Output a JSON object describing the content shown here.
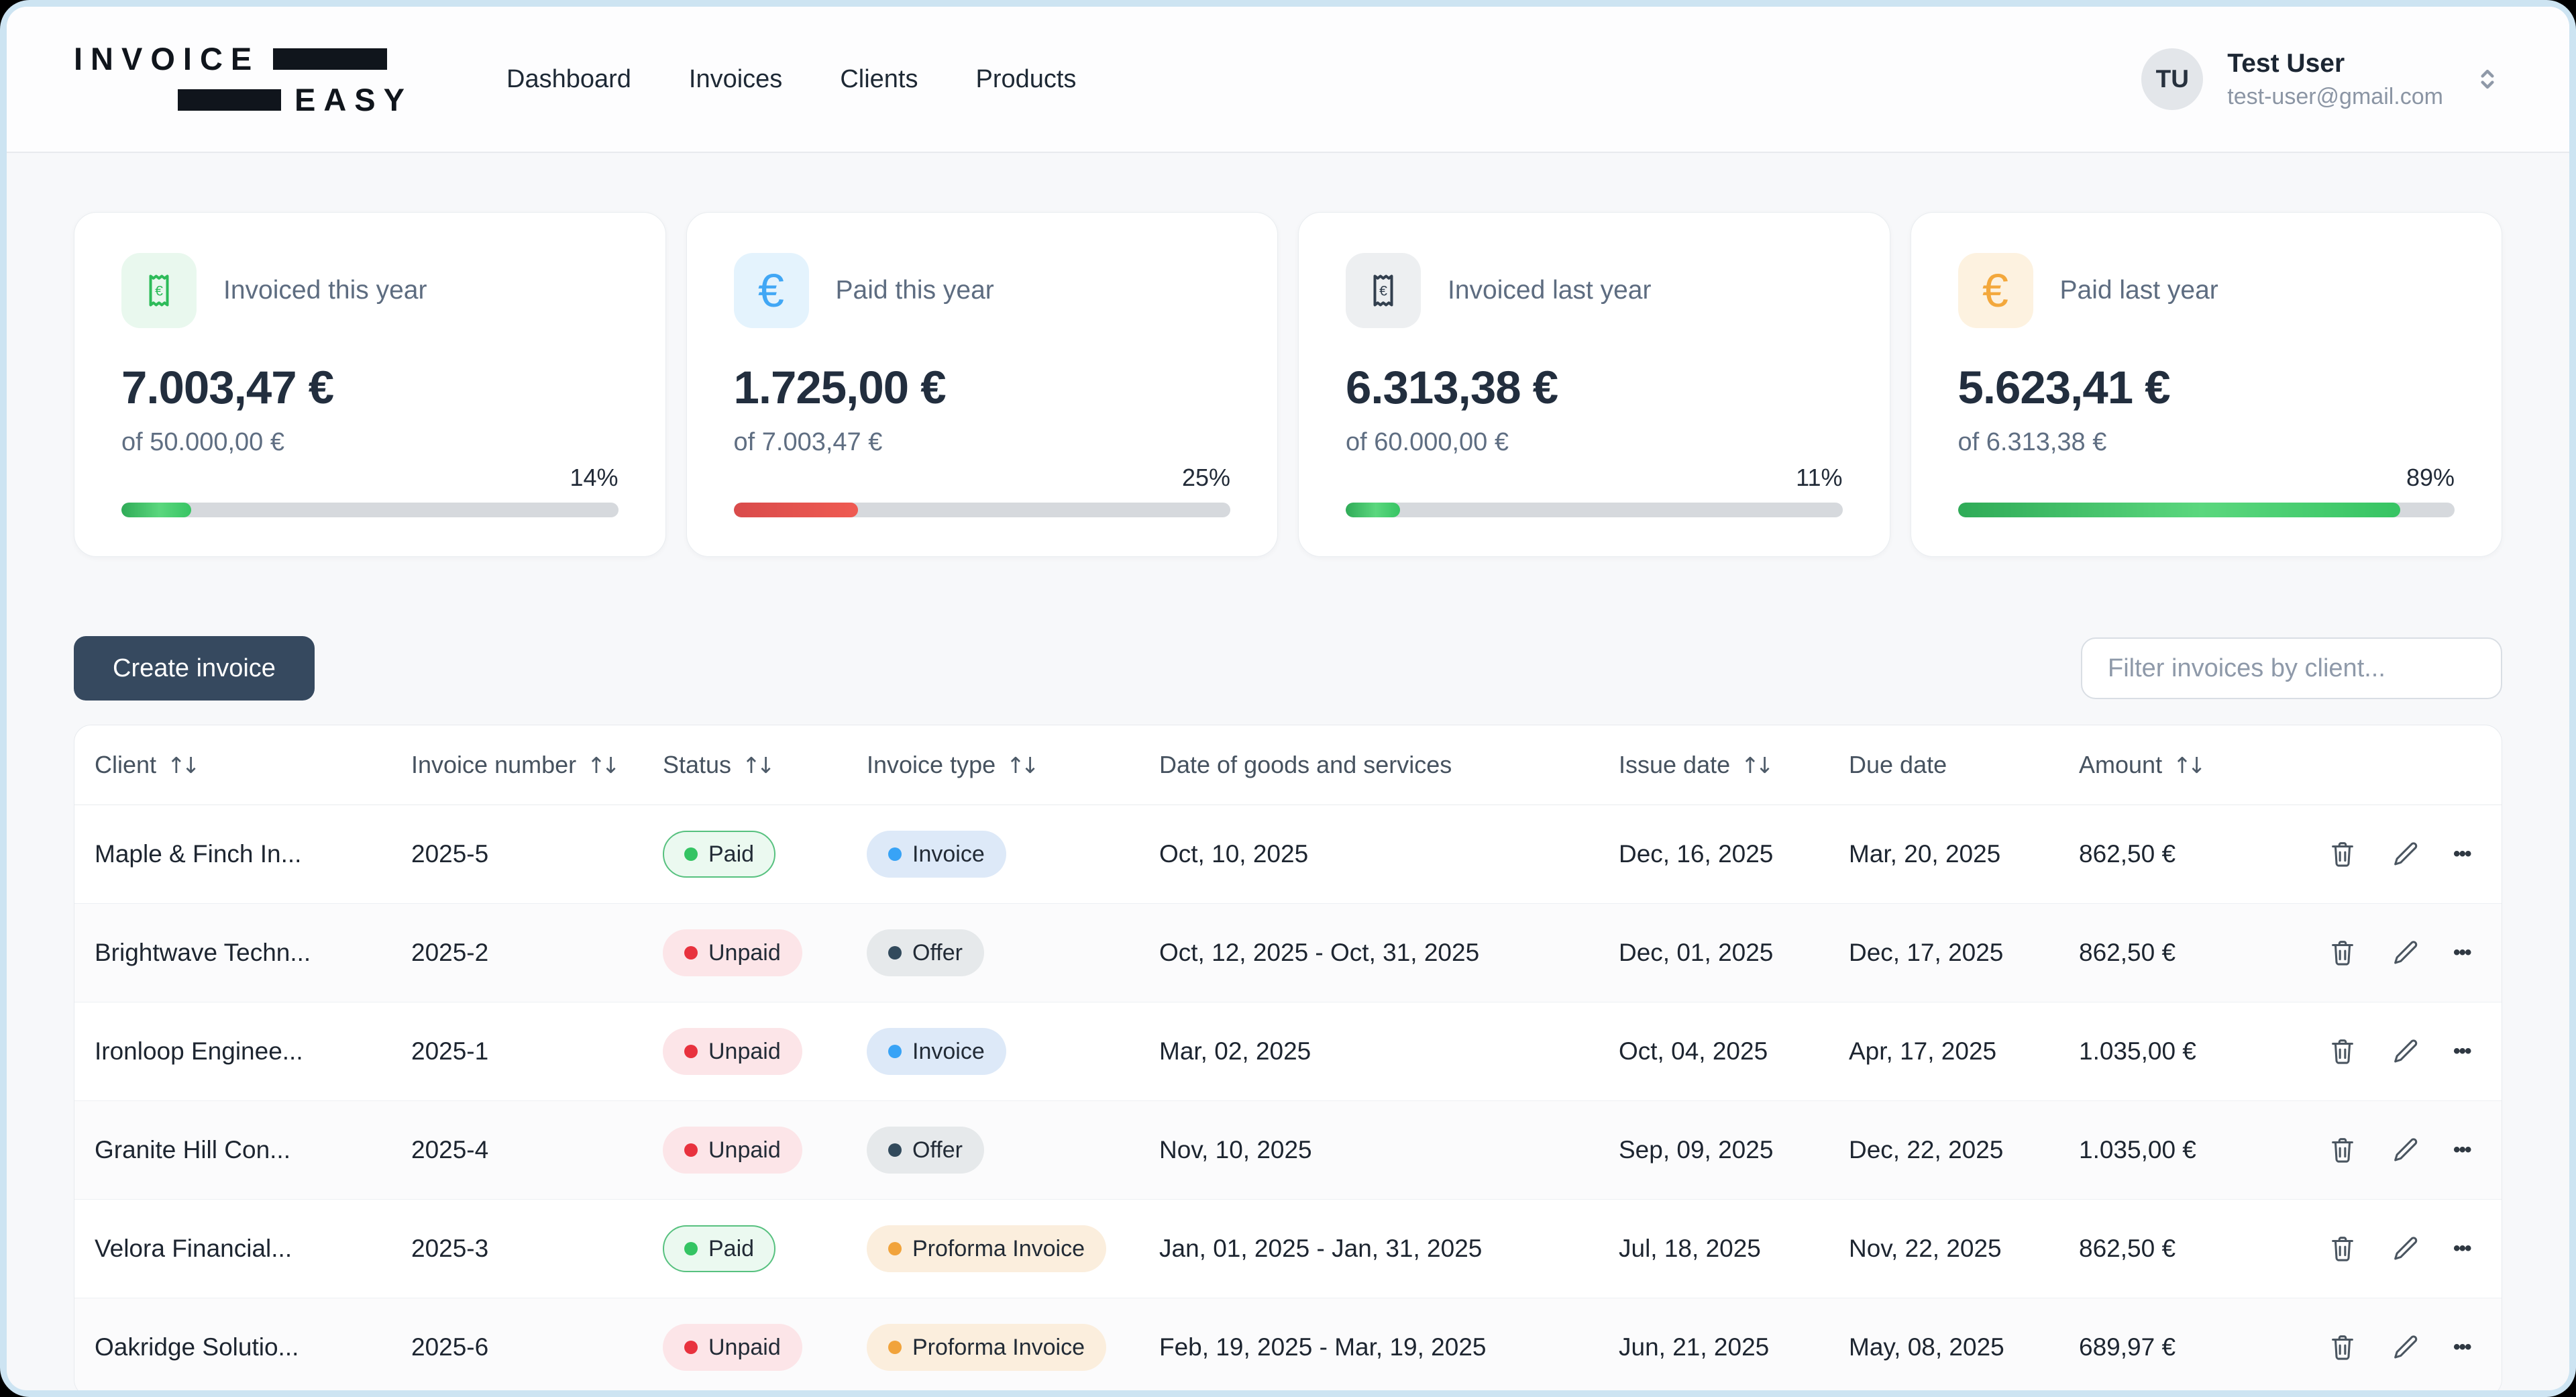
{
  "header": {
    "logo": {
      "line1": "INVOICE",
      "line2": "EASY"
    },
    "nav": [
      {
        "label": "Dashboard"
      },
      {
        "label": "Invoices"
      },
      {
        "label": "Clients"
      },
      {
        "label": "Products"
      }
    ],
    "user": {
      "initials": "TU",
      "name": "Test User",
      "email": "test-user@gmail.com"
    }
  },
  "stats": [
    {
      "label": "Invoiced this year",
      "value": "7.003,47 €",
      "of": "of 50.000,00 €",
      "percent": 14,
      "percent_label": "14%",
      "icon": "receipt",
      "icon_color": "green",
      "bar_color": "green"
    },
    {
      "label": "Paid this year",
      "value": "1.725,00 €",
      "of": "of 7.003,47 €",
      "percent": 25,
      "percent_label": "25%",
      "icon": "euro",
      "icon_color": "blue",
      "bar_color": "red"
    },
    {
      "label": "Invoiced last year",
      "value": "6.313,38 €",
      "of": "of 60.000,00 €",
      "percent": 11,
      "percent_label": "11%",
      "icon": "receipt",
      "icon_color": "gray",
      "bar_color": "green"
    },
    {
      "label": "Paid last year",
      "value": "5.623,41 €",
      "of": "of 6.313,38 €",
      "percent": 89,
      "percent_label": "89%",
      "icon": "euro",
      "icon_color": "orange",
      "bar_color": "green"
    }
  ],
  "toolbar": {
    "create_button": "Create invoice",
    "filter_placeholder": "Filter invoices by client..."
  },
  "table": {
    "columns": [
      {
        "label": "Client",
        "variant": "sortable",
        "interactable": "true"
      },
      {
        "label": "Invoice number",
        "variant": "sortable",
        "interactable": "true"
      },
      {
        "label": "Status",
        "variant": "sortable",
        "interactable": "true"
      },
      {
        "label": "Invoice type",
        "variant": "sortable",
        "interactable": "true"
      },
      {
        "label": "Date of goods and services",
        "variant": "static",
        "interactable": "false"
      },
      {
        "label": "Issue date",
        "variant": "sortable",
        "interactable": "true"
      },
      {
        "label": "Due date",
        "variant": "static",
        "interactable": "false"
      },
      {
        "label": "Amount",
        "variant": "sortable",
        "interactable": "true"
      },
      {
        "label": "",
        "variant": "static",
        "interactable": "false"
      }
    ],
    "rows": [
      {
        "client": "Maple & Finch In...",
        "number": "2025-5",
        "status": "Paid",
        "status_variant": "paid",
        "type": "Invoice",
        "type_variant": "invoice",
        "goods_date": "Oct, 10, 2025",
        "issue_date": "Dec, 16, 2025",
        "due_date": "Mar, 20, 2025",
        "amount": "862,50 €"
      },
      {
        "client": "Brightwave Techn...",
        "number": "2025-2",
        "status": "Unpaid",
        "status_variant": "unpaid",
        "type": "Offer",
        "type_variant": "offer",
        "goods_date": "Oct, 12, 2025 - Oct, 31, 2025",
        "issue_date": "Dec, 01, 2025",
        "due_date": "Dec, 17, 2025",
        "amount": "862,50 €"
      },
      {
        "client": "Ironloop Enginee...",
        "number": "2025-1",
        "status": "Unpaid",
        "status_variant": "unpaid",
        "type": "Invoice",
        "type_variant": "invoice",
        "goods_date": "Mar, 02, 2025",
        "issue_date": "Oct, 04, 2025",
        "due_date": "Apr, 17, 2025",
        "amount": "1.035,00 €"
      },
      {
        "client": "Granite Hill Con...",
        "number": "2025-4",
        "status": "Unpaid",
        "status_variant": "unpaid",
        "type": "Offer",
        "type_variant": "offer",
        "goods_date": "Nov, 10, 2025",
        "issue_date": "Sep, 09, 2025",
        "due_date": "Dec, 22, 2025",
        "amount": "1.035,00 €"
      },
      {
        "client": "Velora Financial...",
        "number": "2025-3",
        "status": "Paid",
        "status_variant": "paid",
        "type": "Proforma Invoice",
        "type_variant": "proforma",
        "goods_date": "Jan, 01, 2025 - Jan, 31, 2025",
        "issue_date": "Jul, 18, 2025",
        "due_date": "Nov, 22, 2025",
        "amount": "862,50 €"
      },
      {
        "client": "Oakridge Solutio...",
        "number": "2025-6",
        "status": "Unpaid",
        "status_variant": "unpaid",
        "type": "Proforma Invoice",
        "type_variant": "proforma",
        "goods_date": "Feb, 19, 2025 - Mar, 19, 2025",
        "issue_date": "Jun, 21, 2025",
        "due_date": "May, 08, 2025",
        "amount": "689,97 €"
      }
    ]
  },
  "icons": {
    "sort": "↑↓",
    "euro": "€",
    "ellipsis": "•••"
  },
  "colors": {
    "frame_blue": "#cde4f2",
    "accent_navy": "#36495f",
    "paid_green": "#34c463",
    "unpaid_red": "#e8323e",
    "invoice_blue": "#38a3f6",
    "offer_navy": "#324a5c",
    "proforma_orange": "#f1a33b",
    "bar_green": "#37c463",
    "bar_red": "#e05252",
    "icon_green": "#2dbb59",
    "icon_blue": "#41a7f5",
    "icon_gray": "#323f4e",
    "icon_orange": "#f3a83c"
  }
}
